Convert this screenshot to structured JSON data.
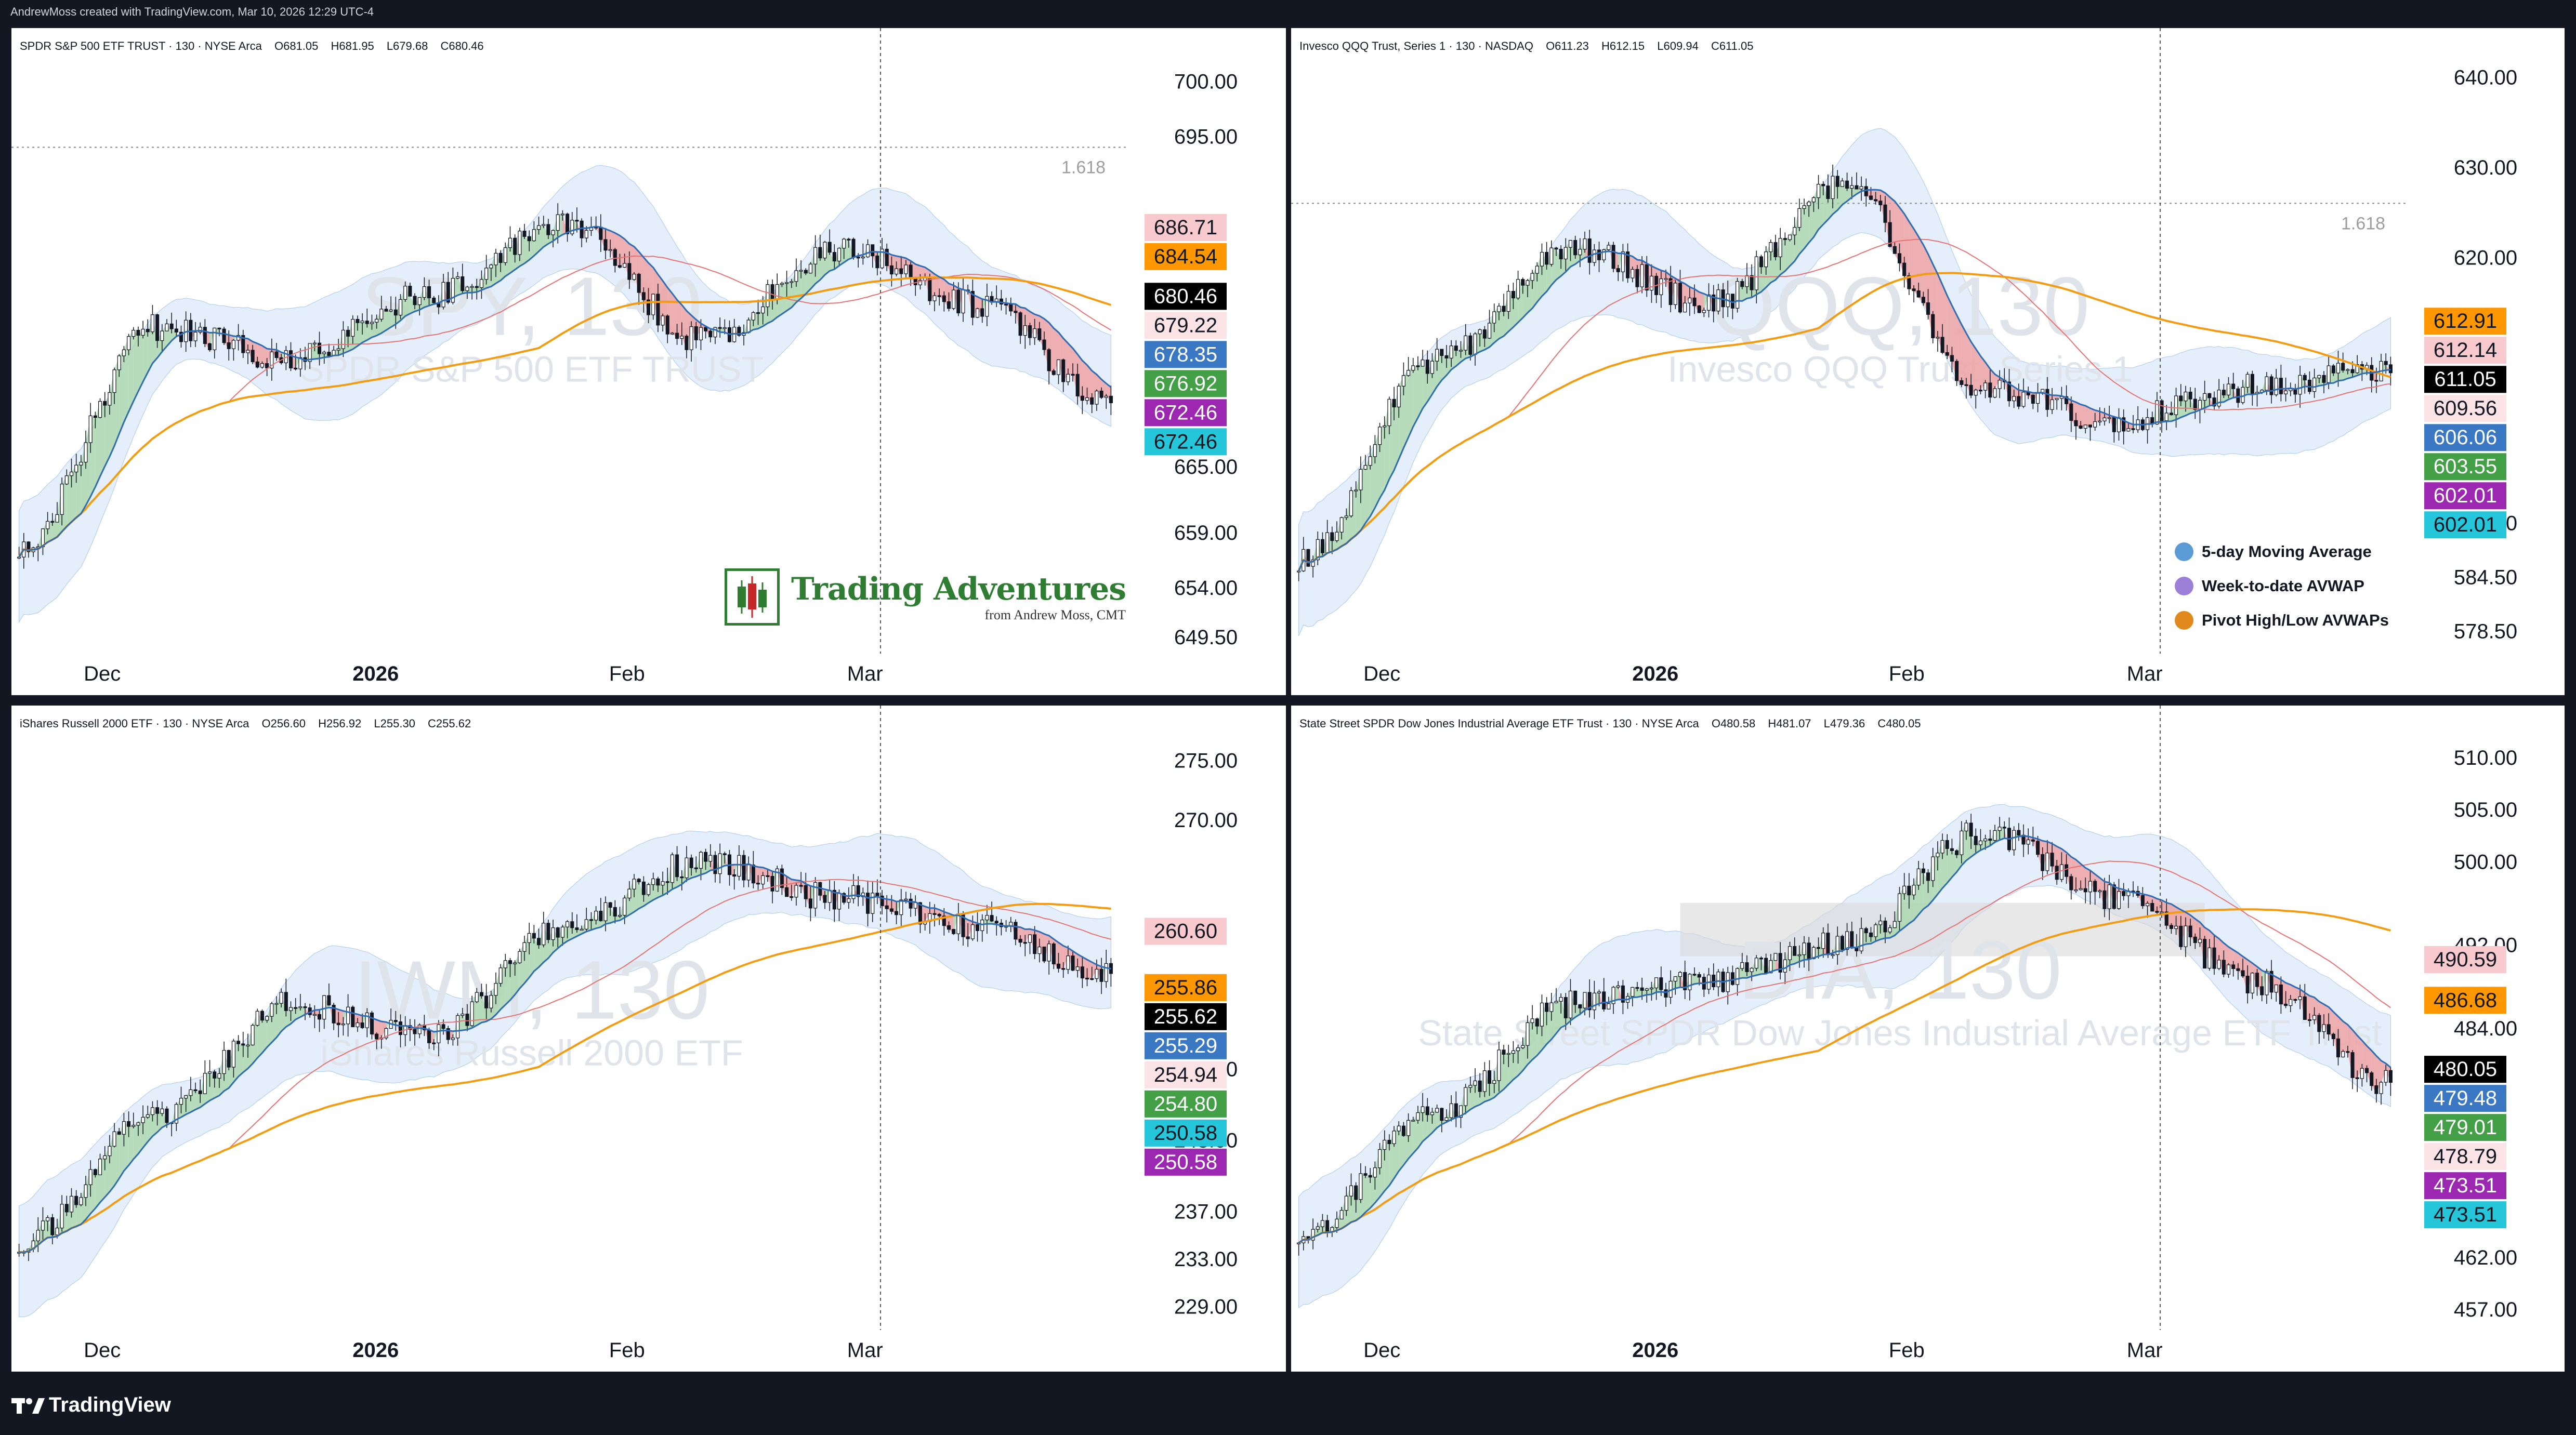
{
  "header": {
    "created_by": "AndrewMoss created with TradingView.com, Mar 10, 2026 12:29 UTC-4"
  },
  "footer": {
    "logo_text": "TradingView"
  },
  "branding": {
    "title": "Trading Adventures",
    "subtitle": "from Andrew Moss, CMT"
  },
  "legend": {
    "items": [
      {
        "label": "5-day Moving Average",
        "color": "#5b9bd5"
      },
      {
        "label": "Week-to-date AVWAP",
        "color": "#9c7fd6"
      },
      {
        "label": "Pivot High/Low AVWAPs",
        "color": "#e08a1e"
      }
    ]
  },
  "colors": {
    "up_fill": "#a5d6a7",
    "down_fill": "#ef9a9a",
    "neutral_fill": "#fff3c4",
    "bands": "#cfe2f8",
    "ma_blue": "#2f6cb3",
    "avwap_orange": "#f39c12",
    "ma_pink": "#e57373",
    "ma_green": "#43a047"
  },
  "chart_data": [
    {
      "type": "candlestick",
      "symbol": "SPY",
      "watermark": "SPY, 130",
      "watermark_name": "SPDR S&P 500 ETF TRUST",
      "title": "SPDR S&P 500 ETF TRUST · 130 · NYSE Arca",
      "ohlc": {
        "O": "O681.05",
        "H": "H681.95",
        "L": "L679.68",
        "C": "C680.46"
      },
      "y_ticks": [
        "700.00",
        "695.00",
        "665.00",
        "659.00",
        "654.00",
        "649.50"
      ],
      "y_tick_values": [
        700,
        695,
        665,
        659,
        654,
        649.5
      ],
      "x_ticks": [
        "Dec",
        "2026",
        "Feb",
        "Mar"
      ],
      "fib_label": "1.618",
      "fib_value": 694.0,
      "price_tags": [
        {
          "text": "686.71",
          "value": 686.71,
          "bg": "#f8c9cd",
          "fg": "#131722"
        },
        {
          "text": "684.54",
          "value": 684.54,
          "bg": "#ff9800",
          "fg": "#131722"
        },
        {
          "text": "680.46",
          "value": 680.46,
          "bg": "#000000",
          "fg": "#ffffff"
        },
        {
          "text": "679.22",
          "value": 679.22,
          "bg": "#fbe3e6",
          "fg": "#131722"
        },
        {
          "text": "678.35",
          "value": 678.35,
          "bg": "#3a78c3",
          "fg": "#ffffff"
        },
        {
          "text": "676.92",
          "value": 676.92,
          "bg": "#43a047",
          "fg": "#ffffff"
        },
        {
          "text": "672.46",
          "value": 672.46,
          "bg": "#9c27b0",
          "fg": "#ffffff"
        },
        {
          "text": "672.46",
          "value": 672.46,
          "bg": "#26c6da",
          "fg": "#131722"
        }
      ],
      "ylim": [
        648,
        702
      ]
    },
    {
      "type": "candlestick",
      "symbol": "QQQ",
      "watermark": "QQQ, 130",
      "watermark_name": "Invesco QQQ Trust, Series 1",
      "title": "Invesco QQQ Trust, Series 1 · 130 · NASDAQ",
      "ohlc": {
        "O": "O611.23",
        "H": "H612.15",
        "L": "L609.94",
        "C": "C611.05"
      },
      "y_ticks": [
        "640.00",
        "630.00",
        "620.00",
        "590.50",
        "584.50",
        "578.50"
      ],
      "y_tick_values": [
        640,
        630,
        620,
        590.5,
        584.5,
        578.5
      ],
      "x_ticks": [
        "Dec",
        "2026",
        "Feb",
        "Mar"
      ],
      "fib_label": "1.618",
      "fib_value": 626.0,
      "price_tags": [
        {
          "text": "612.91",
          "value": 612.91,
          "bg": "#ff9800",
          "fg": "#131722"
        },
        {
          "text": "612.14",
          "value": 612.14,
          "bg": "#f8c9cd",
          "fg": "#131722"
        },
        {
          "text": "611.05",
          "value": 611.05,
          "bg": "#000000",
          "fg": "#ffffff"
        },
        {
          "text": "609.56",
          "value": 609.56,
          "bg": "#fbe3e6",
          "fg": "#131722"
        },
        {
          "text": "606.06",
          "value": 606.06,
          "bg": "#3a78c3",
          "fg": "#ffffff"
        },
        {
          "text": "603.55",
          "value": 603.55,
          "bg": "#43a047",
          "fg": "#ffffff"
        },
        {
          "text": "602.01",
          "value": 602.01,
          "bg": "#9c27b0",
          "fg": "#ffffff"
        },
        {
          "text": "602.01",
          "value": 602.01,
          "bg": "#26c6da",
          "fg": "#131722"
        }
      ],
      "ylim": [
        576,
        642
      ]
    },
    {
      "type": "candlestick",
      "symbol": "IWM",
      "watermark": "IWM, 130",
      "watermark_name": "iShares Russell 2000 ETF",
      "title": "iShares Russell 2000 ETF · 130 · NYSE Arca",
      "ohlc": {
        "O": "O256.60",
        "H": "H256.92",
        "L": "L255.30",
        "C": "C255.62"
      },
      "y_ticks": [
        "275.00",
        "270.00",
        "249.00",
        "243.00",
        "237.00",
        "233.00",
        "229.00"
      ],
      "y_tick_values": [
        275,
        270,
        249,
        243,
        237,
        233,
        229
      ],
      "x_ticks": [
        "Dec",
        "2026",
        "Feb",
        "Mar"
      ],
      "price_tags": [
        {
          "text": "260.60",
          "value": 260.6,
          "bg": "#f8c9cd",
          "fg": "#131722"
        },
        {
          "text": "255.86",
          "value": 255.86,
          "bg": "#ff9800",
          "fg": "#131722"
        },
        {
          "text": "255.62",
          "value": 255.62,
          "bg": "#000000",
          "fg": "#ffffff"
        },
        {
          "text": "255.29",
          "value": 255.29,
          "bg": "#3a78c3",
          "fg": "#ffffff"
        },
        {
          "text": "254.94",
          "value": 254.94,
          "bg": "#fbe3e6",
          "fg": "#131722"
        },
        {
          "text": "254.80",
          "value": 254.8,
          "bg": "#43a047",
          "fg": "#ffffff"
        },
        {
          "text": "250.58",
          "value": 250.58,
          "bg": "#26c6da",
          "fg": "#131722"
        },
        {
          "text": "250.58",
          "value": 250.58,
          "bg": "#9c27b0",
          "fg": "#ffffff"
        }
      ],
      "ylim": [
        227,
        277
      ]
    },
    {
      "type": "candlestick",
      "symbol": "DIA",
      "watermark": "DIA, 130",
      "watermark_name": "State Street SPDR Dow Jones Industrial Average ETF Trust",
      "title": "State Street SPDR Dow Jones Industrial Average ETF Trust · 130 · NYSE Arca",
      "ohlc": {
        "O": "O480.58",
        "H": "H481.07",
        "L": "L479.36",
        "C": "C480.05"
      },
      "y_ticks": [
        "510.00",
        "505.00",
        "500.00",
        "492.00",
        "484.00",
        "462.00",
        "457.00"
      ],
      "y_tick_values": [
        510,
        505,
        500,
        492,
        484,
        462,
        457
      ],
      "x_ticks": [
        "Dec",
        "2026",
        "Feb",
        "Mar"
      ],
      "price_tags": [
        {
          "text": "490.59",
          "value": 490.59,
          "bg": "#f8c9cd",
          "fg": "#131722"
        },
        {
          "text": "486.68",
          "value": 486.68,
          "bg": "#ff9800",
          "fg": "#131722"
        },
        {
          "text": "480.05",
          "value": 480.05,
          "bg": "#000000",
          "fg": "#ffffff"
        },
        {
          "text": "479.48",
          "value": 479.48,
          "bg": "#3a78c3",
          "fg": "#ffffff"
        },
        {
          "text": "479.01",
          "value": 479.01,
          "bg": "#43a047",
          "fg": "#ffffff"
        },
        {
          "text": "478.79",
          "value": 478.79,
          "bg": "#fbe3e6",
          "fg": "#131722"
        },
        {
          "text": "473.51",
          "value": 473.51,
          "bg": "#9c27b0",
          "fg": "#ffffff"
        },
        {
          "text": "473.51",
          "value": 473.51,
          "bg": "#26c6da",
          "fg": "#131722"
        }
      ],
      "ylim": [
        455,
        512
      ]
    }
  ]
}
